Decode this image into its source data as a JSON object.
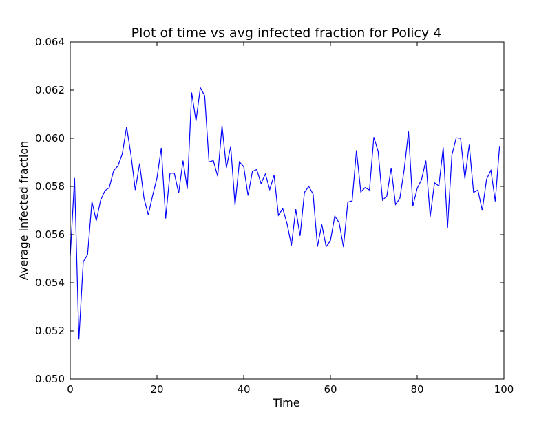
{
  "chart_data": {
    "type": "line",
    "title": "Plot of time vs avg infected fraction for Policy 4",
    "xlabel": "Time",
    "ylabel": "Average infected fraction",
    "xlim": [
      0,
      100
    ],
    "ylim": [
      0.05,
      0.064
    ],
    "grid": false,
    "x_ticks": [
      "0",
      "20",
      "40",
      "60",
      "80",
      "100"
    ],
    "y_ticks": [
      "0.050",
      "0.052",
      "0.054",
      "0.056",
      "0.058",
      "0.060",
      "0.062",
      "0.064"
    ],
    "series_color": "#0000ff",
    "series": [
      {
        "x": [
          0,
          1,
          2,
          3,
          4,
          5,
          6,
          7,
          8,
          9,
          10,
          11,
          12,
          13,
          14,
          15,
          16,
          17,
          18,
          19,
          20,
          21,
          22,
          23,
          24,
          25,
          26,
          27,
          28,
          29,
          30,
          31,
          32,
          33,
          34,
          35,
          36,
          37,
          38,
          39,
          40,
          41,
          42,
          43,
          44,
          45,
          46,
          47,
          48,
          49,
          50,
          51,
          52,
          53,
          54,
          55,
          56,
          57,
          58,
          59,
          60,
          61,
          62,
          63,
          64,
          65,
          66,
          67,
          68,
          69,
          70,
          71,
          72,
          73,
          74,
          75,
          76,
          77,
          78,
          79,
          80,
          81,
          82,
          83,
          84,
          85,
          86,
          87,
          88,
          89,
          90,
          91,
          92,
          93,
          94,
          95,
          96,
          97,
          98,
          99
        ],
        "y": [
          0.0551,
          0.05835,
          0.05165,
          0.05487,
          0.05517,
          0.05737,
          0.05657,
          0.05742,
          0.05782,
          0.05795,
          0.05865,
          0.05885,
          0.05935,
          0.06047,
          0.05932,
          0.05785,
          0.05895,
          0.05752,
          0.05682,
          0.05762,
          0.05835,
          0.0596,
          0.05667,
          0.05855,
          0.05855,
          0.05772,
          0.05907,
          0.0579,
          0.0619,
          0.06072,
          0.0621,
          0.06177,
          0.05902,
          0.05907,
          0.05842,
          0.06053,
          0.05877,
          0.05967,
          0.05722,
          0.05902,
          0.05882,
          0.05762,
          0.05862,
          0.0587,
          0.05812,
          0.05852,
          0.05787,
          0.05847,
          0.0568,
          0.05708,
          0.05645,
          0.05555,
          0.05705,
          0.05595,
          0.05775,
          0.058,
          0.05768,
          0.0555,
          0.05642,
          0.0555,
          0.05575,
          0.05677,
          0.0565,
          0.05548,
          0.05735,
          0.0574,
          0.0595,
          0.05777,
          0.05795,
          0.05785,
          0.06005,
          0.05945,
          0.05743,
          0.0576,
          0.05877,
          0.05725,
          0.0575,
          0.0587,
          0.06028,
          0.05718,
          0.05792,
          0.05828,
          0.05907,
          0.05675,
          0.05815,
          0.05802,
          0.05962,
          0.05628,
          0.0593,
          0.06002,
          0.06,
          0.05832,
          0.05973,
          0.05775,
          0.05785,
          0.057,
          0.0583,
          0.05867,
          0.05738,
          0.05968
        ]
      }
    ]
  }
}
